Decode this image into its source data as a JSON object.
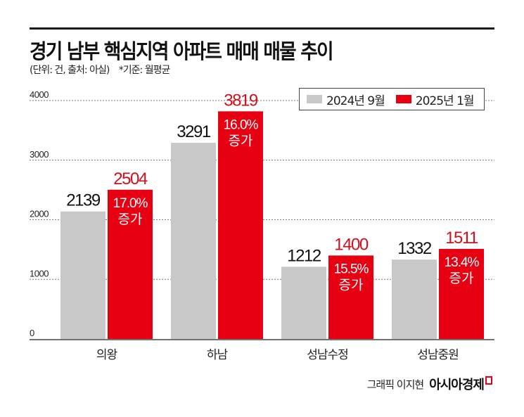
{
  "header": {
    "title": "경기 남부 핵심지역 아파트 매매 매물 추이",
    "unit_note": "(단위: 건, 출처: 아실)",
    "basis_note": "*기준: 월평균"
  },
  "credit": {
    "graphic_by": "그래픽 이지현",
    "brand": "아시아경제"
  },
  "colors": {
    "series_2024": "#c8c8c8",
    "series_2025": "#e60012",
    "increase_label_value": "#d0101c",
    "text": "#111111"
  },
  "chart_data": {
    "type": "bar",
    "title": "경기 남부 핵심지역 아파트 매매 매물 추이",
    "xlabel": "",
    "ylabel": "",
    "ylim": [
      0,
      4000
    ],
    "yticks": [
      "0",
      "1000",
      "2000",
      "3000",
      "4000"
    ],
    "ytick_values": [
      0,
      1000,
      2000,
      3000,
      4000
    ],
    "grid": true,
    "legend_position": "top-right",
    "categories": [
      "의왕",
      "하남",
      "성남수정",
      "성남중원"
    ],
    "series": [
      {
        "name": "2024년 9월",
        "values": [
          2139,
          3291,
          1212,
          1332
        ],
        "labels": [
          "2139",
          "3291",
          "1212",
          "1332"
        ]
      },
      {
        "name": "2025년 1월",
        "values": [
          2504,
          3819,
          1400,
          1511
        ],
        "labels": [
          "2504",
          "3819",
          "1400",
          "1511"
        ]
      }
    ],
    "annotations": [
      {
        "pct": "17.0%",
        "word": "증가"
      },
      {
        "pct": "16.0%",
        "word": "증가"
      },
      {
        "pct": "15.5%",
        "word": "증가"
      },
      {
        "pct": "13.4%",
        "word": "증가"
      }
    ]
  }
}
